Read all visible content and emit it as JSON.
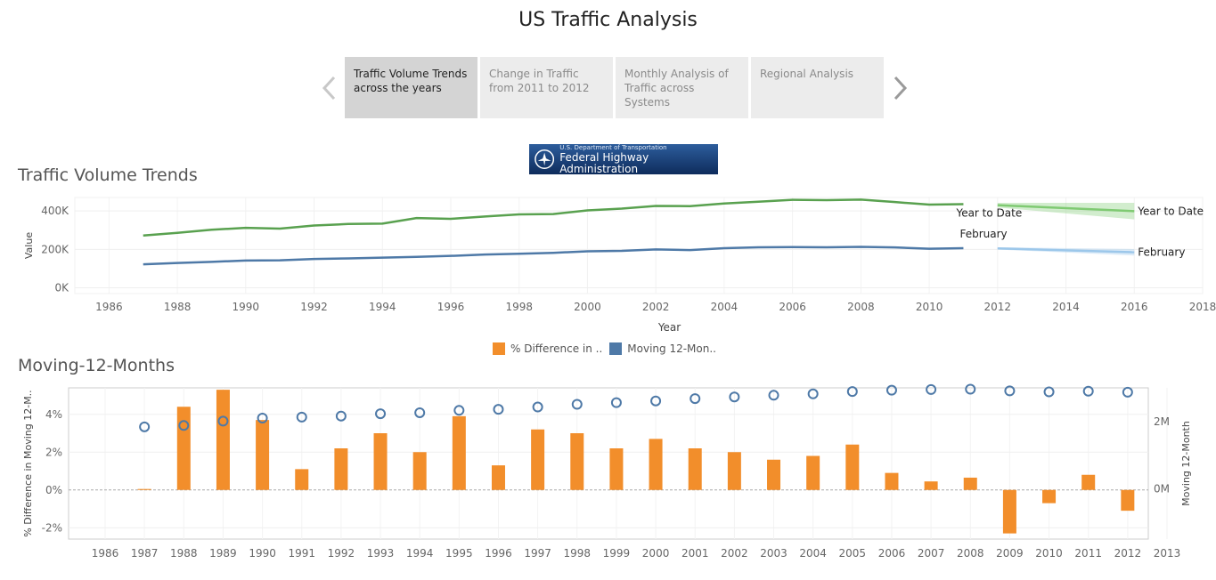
{
  "page": {
    "title": "US Traffic Analysis"
  },
  "story": {
    "tabs": [
      {
        "label": "Traffic Volume Trends across the years",
        "active": true
      },
      {
        "label": "Change in Traffic from 2011 to 2012",
        "active": false
      },
      {
        "label": "Monthly Analysis of Traffic across Systems",
        "active": false
      },
      {
        "label": "Regional Analysis",
        "active": false
      }
    ],
    "prev_icon": "chevron-left-icon",
    "next_icon": "chevron-right-icon"
  },
  "logo": {
    "subtitle": "U.S. Department of Transportation",
    "name": "Federal Highway Administration",
    "icon": "fhwa-emblem-icon"
  },
  "colors": {
    "green": "#59a14f",
    "blue": "#4e79a7",
    "orange": "#f28e2b",
    "forecast_green": "#7fca72",
    "forecast_blue": "#9cc7ea",
    "grid": "#eeeeee"
  },
  "legend": {
    "items": [
      {
        "label": "% Difference in ..",
        "color": "#f28e2b"
      },
      {
        "label": "Moving 12-Mon..",
        "color": "#4e79a7"
      }
    ]
  },
  "chart_data": [
    {
      "type": "line",
      "title": "Traffic Volume Trends",
      "xlabel": "Year",
      "ylabel": "Value",
      "xlim": [
        1985,
        2018
      ],
      "ylim": [
        -30000,
        470000
      ],
      "xticks": [
        1986,
        1988,
        1990,
        1992,
        1994,
        1996,
        1998,
        2000,
        2002,
        2004,
        2006,
        2008,
        2010,
        2012,
        2014,
        2016,
        2018
      ],
      "yticks": [
        {
          "value": 0,
          "label": "0K"
        },
        {
          "value": 200000,
          "label": "200K"
        },
        {
          "value": 400000,
          "label": "400K"
        }
      ],
      "x": [
        1987,
        1988,
        1989,
        1990,
        1991,
        1992,
        1993,
        1994,
        1995,
        1996,
        1997,
        1998,
        1999,
        2000,
        2001,
        2002,
        2003,
        2004,
        2005,
        2006,
        2007,
        2008,
        2009,
        2010,
        2011
      ],
      "series": [
        {
          "name": "Year to Date",
          "color": "#59a14f",
          "values": [
            272000,
            286000,
            302000,
            312000,
            308000,
            324000,
            332000,
            334000,
            363000,
            359000,
            371000,
            382000,
            384000,
            403000,
            412000,
            426000,
            425000,
            439000,
            448000,
            458000,
            456000,
            459000,
            446000,
            433000,
            435000
          ],
          "end_label": "Year to Date",
          "forecast": {
            "x": [
              2012,
              2016
            ],
            "values": [
              430000,
              399000
            ],
            "lower": [
              418000,
              356000
            ],
            "upper": [
              442000,
              442000
            ],
            "label": "Year to Date"
          }
        },
        {
          "name": "February",
          "color": "#4e79a7",
          "values": [
            122000,
            129000,
            135000,
            142000,
            143000,
            150000,
            153000,
            157000,
            161000,
            166000,
            173000,
            177000,
            182000,
            190000,
            192000,
            200000,
            196000,
            206000,
            211000,
            212000,
            211000,
            213000,
            210000,
            203000,
            206000
          ],
          "end_label": "February",
          "forecast": {
            "x": [
              2012,
              2016
            ],
            "values": [
              205000,
              185000
            ],
            "lower": [
              199000,
              168000
            ],
            "upper": [
              211000,
              202000
            ],
            "label": "February"
          }
        }
      ]
    },
    {
      "type": "bar",
      "title": "Moving-12-Months",
      "categories": [
        "1986",
        "1987",
        "1988",
        "1989",
        "1990",
        "1991",
        "1992",
        "1993",
        "1994",
        "1995",
        "1996",
        "1997",
        "1998",
        "1999",
        "2000",
        "2001",
        "2002",
        "2003",
        "2004",
        "2005",
        "2006",
        "2007",
        "2008",
        "2009",
        "2010",
        "2011",
        "2012",
        "2013"
      ],
      "ylabel": "% Difference in Moving 12-M..",
      "y2label": "Moving 12-Month",
      "ylim": [
        -2.6,
        5.4
      ],
      "y2lim": [
        -1.5,
        3.0
      ],
      "yticks": [
        {
          "value": -2,
          "label": "-2%"
        },
        {
          "value": 0,
          "label": "0%"
        },
        {
          "value": 2,
          "label": "2%"
        },
        {
          "value": 4,
          "label": "4%"
        }
      ],
      "y2ticks": [
        {
          "value": 0,
          "label": "0M"
        },
        {
          "value": 2,
          "label": "2M"
        }
      ],
      "series": [
        {
          "name": "% Difference in Moving 12-Months",
          "kind": "bar",
          "color": "#f28e2b",
          "values": [
            null,
            0.05,
            4.4,
            5.3,
            3.7,
            1.1,
            2.2,
            3.0,
            2.0,
            3.9,
            1.3,
            3.2,
            3.0,
            2.2,
            2.7,
            2.2,
            2.0,
            1.6,
            1.8,
            2.4,
            0.9,
            0.45,
            0.65,
            -2.3,
            -0.7,
            0.8,
            -1.1,
            null
          ]
        },
        {
          "name": "Moving 12-Month (M)",
          "kind": "circle",
          "color": "#4e79a7",
          "values": [
            null,
            1.84,
            1.88,
            2.01,
            2.1,
            2.13,
            2.16,
            2.23,
            2.26,
            2.33,
            2.36,
            2.43,
            2.51,
            2.56,
            2.61,
            2.68,
            2.73,
            2.78,
            2.82,
            2.89,
            2.93,
            2.95,
            2.96,
            2.91,
            2.88,
            2.9,
            2.87,
            null
          ]
        }
      ]
    }
  ]
}
